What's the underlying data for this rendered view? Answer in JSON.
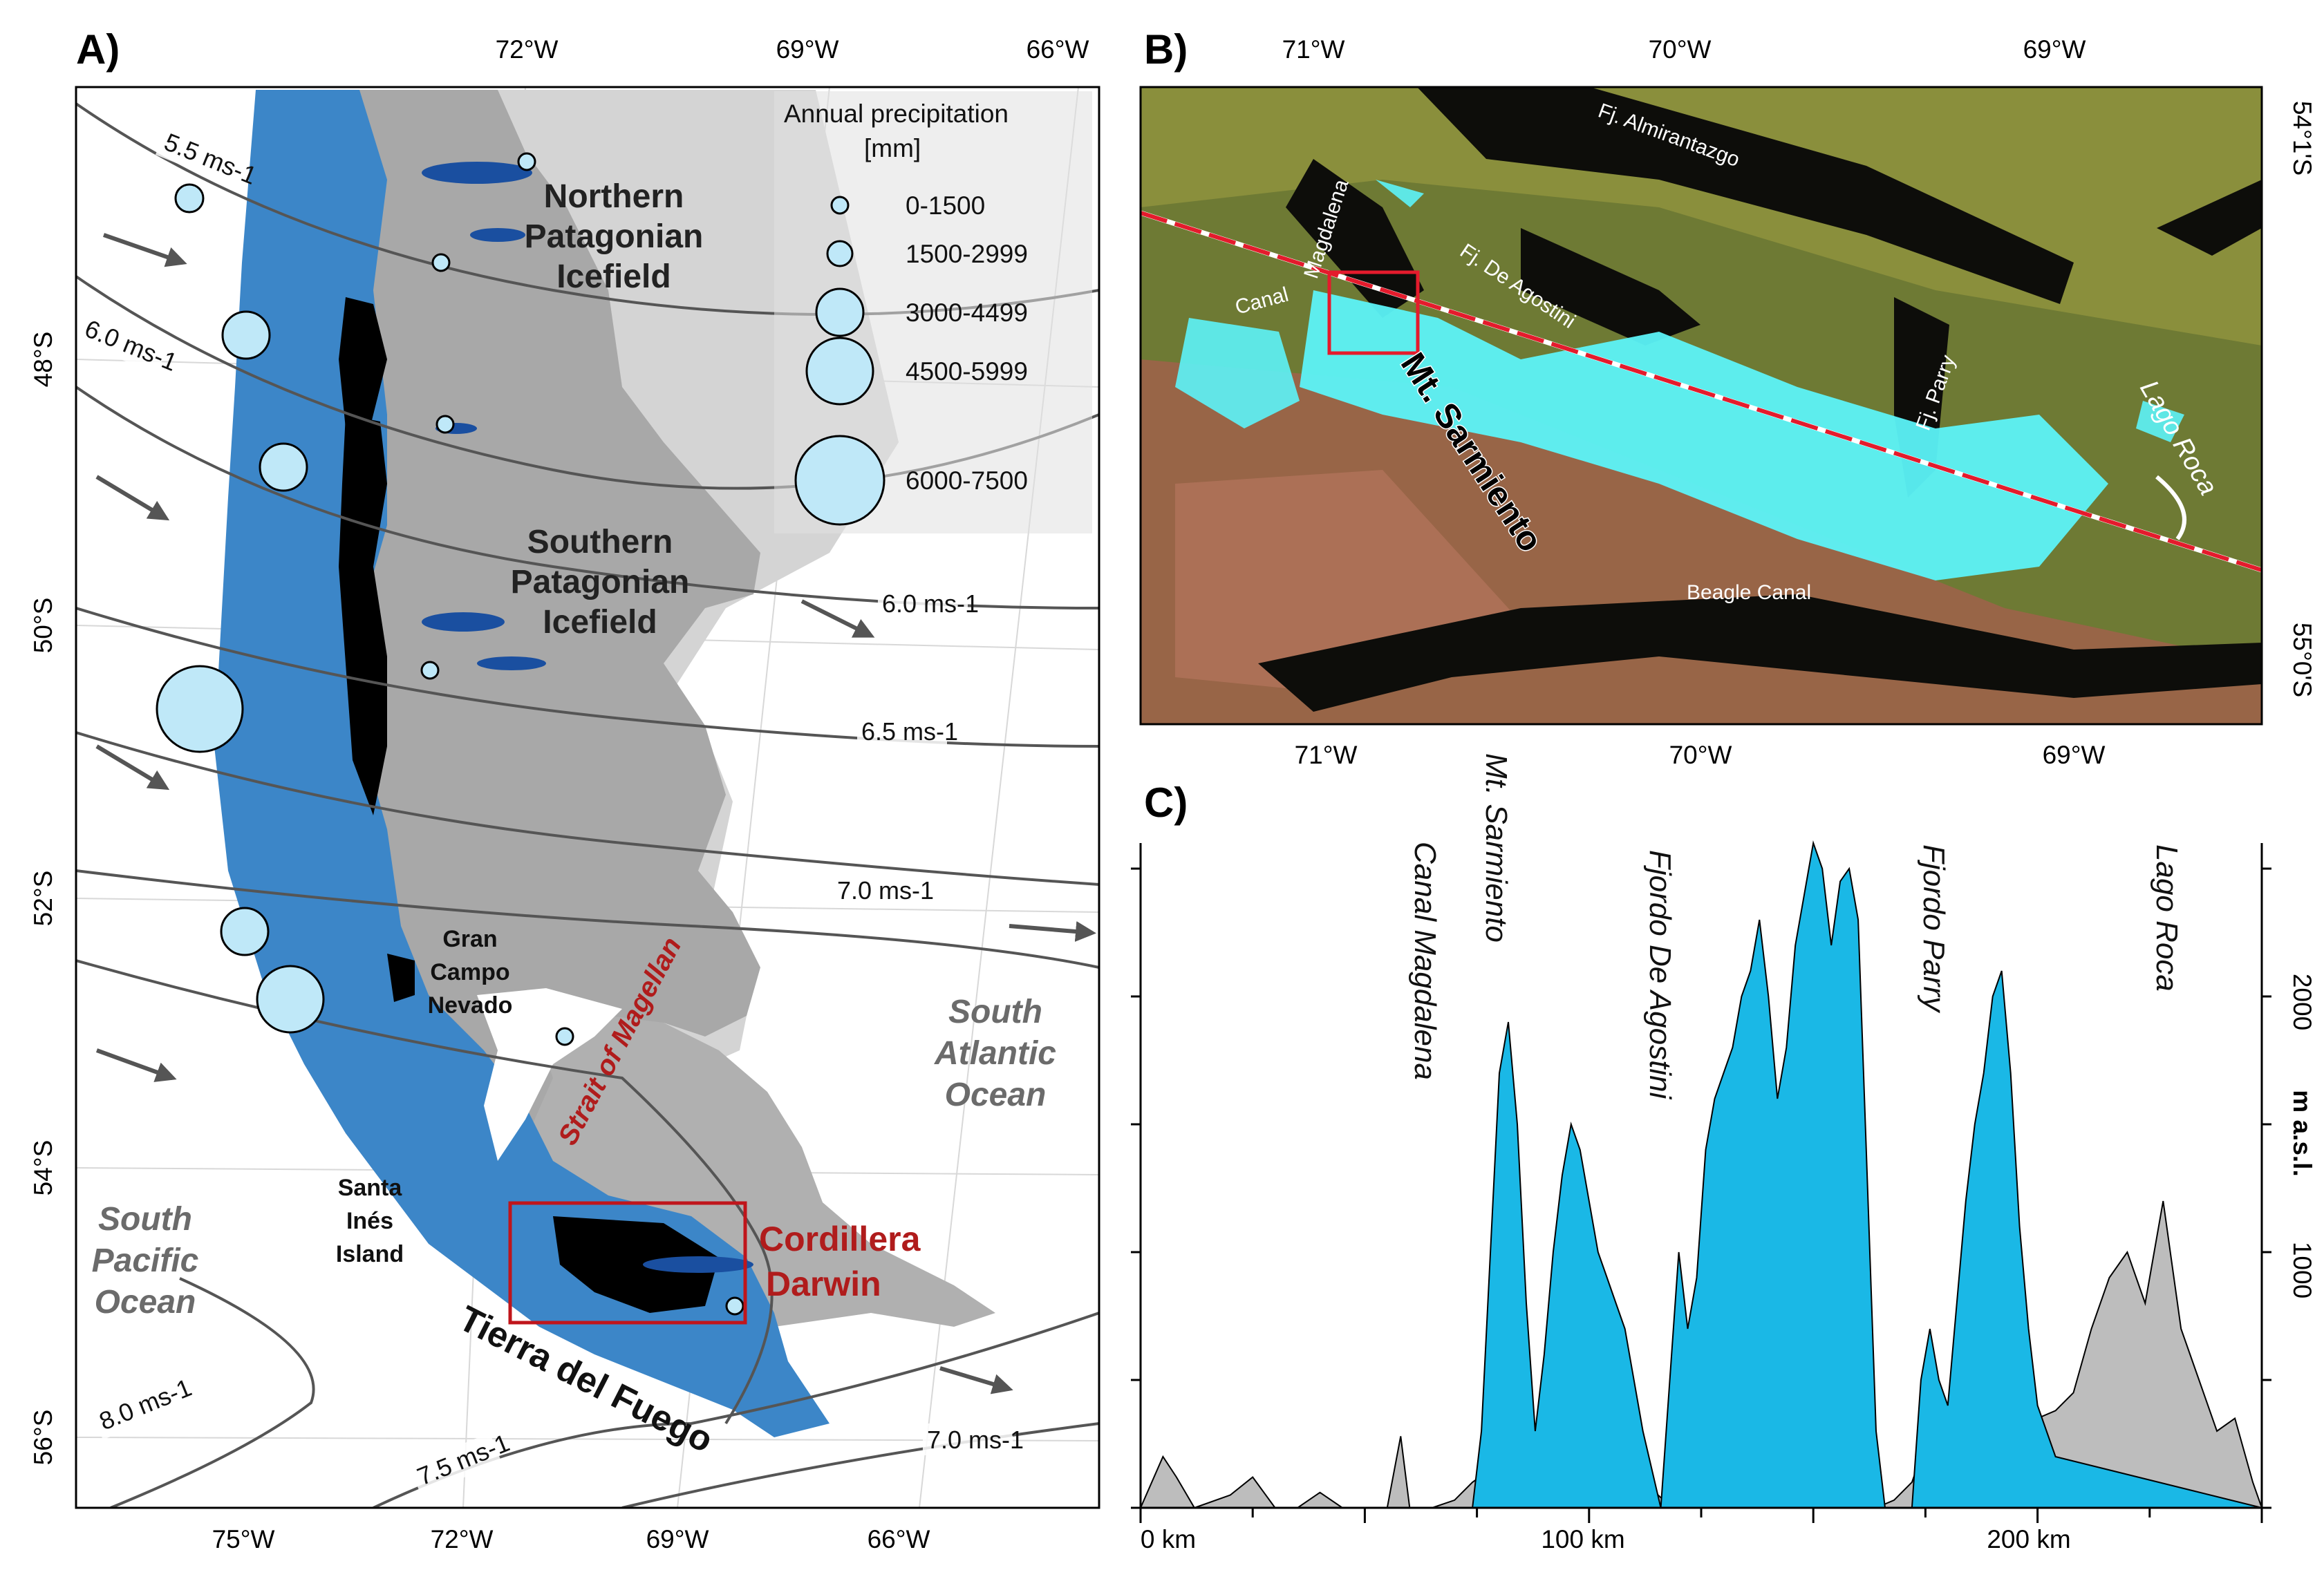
{
  "panels": {
    "a": "A)",
    "b": "B)",
    "c": "C)"
  },
  "panel_a": {
    "top_ticks": [
      "72°W",
      "69°W",
      "66°W"
    ],
    "bottom_ticks": [
      "75°W",
      "72°W",
      "69°W",
      "66°W"
    ],
    "lat_ticks": [
      "48°S",
      "50°S",
      "52°S",
      "54°S",
      "56°S"
    ],
    "legend": {
      "title_line1": "Annual precipitation",
      "title_line2": "[mm]",
      "items": [
        "0-1500",
        "1500-2999",
        "3000-4499",
        "4500-5999",
        "6000-7500"
      ]
    },
    "labels": {
      "npi_1": "Northern",
      "npi_2": "Patagonian",
      "npi_3": "Icefield",
      "spi_1": "Southern",
      "spi_2": "Patagonian",
      "spi_3": "Icefield",
      "gcn_1": "Gran",
      "gcn_2": "Campo",
      "gcn_3": "Nevado",
      "sii_1": "Santa",
      "sii_2": "Inés",
      "sii_3": "Island",
      "strait": "Strait of Magellan",
      "atl_1": "South",
      "atl_2": "Atlantic",
      "atl_3": "Ocean",
      "pac_1": "South",
      "pac_2": "Pacific",
      "pac_3": "Ocean",
      "cd_1": "Cordillera",
      "cd_2": "Darwin",
      "tdf": "Tierra del Fuego"
    },
    "wind_labels": [
      "5.5 ms-1",
      "6.0 ms-1",
      "6.0 ms-1",
      "6.5 ms-1",
      "7.0 ms-1",
      "8.0 ms-1",
      "7.5 ms-1",
      "7.0 ms-1"
    ],
    "wind_base": "ms",
    "wind_sup": "-1",
    "wind_values": [
      "5.5",
      "6.0",
      "6.0",
      "6.5",
      "7.0",
      "8.0",
      "7.5",
      "7.0"
    ],
    "colors": {
      "west_slope": "#3c86c8",
      "ice": "#000000",
      "terrain": "#9a9a9a",
      "lakes": "#1a4fa0",
      "bubble": "#bfe8f8",
      "box": "#c0151b"
    }
  },
  "panel_b": {
    "top_ticks": [
      "71°W",
      "70°W",
      "69°W"
    ],
    "bottom_ticks": [
      "71°W",
      "70°W",
      "69°W"
    ],
    "right_ticks": [
      "54°1'S",
      "55°0'S"
    ],
    "labels": {
      "almirantazgo": "Fj. Almirantazgo",
      "canal_a": "Canal",
      "magdalena": "Magdalena",
      "deagostini": "Fj. De Agostini",
      "parry": "Fj. Parry",
      "lago": "Lago Roca",
      "beagle": "Beagle Canal",
      "sarmiento": "Mt. Sarmiento"
    }
  },
  "panel_c": {
    "x_ticks": [
      "0 km",
      "100 km",
      "200 km"
    ],
    "y_ticks": [
      "2000",
      "1000"
    ],
    "y_unit": "m a.s.l.",
    "labels": [
      "Canal Magdalena",
      "Mt. Sarmiento",
      "Fjordo De Agostini",
      "Fjordo Parry",
      "Lago Roca"
    ],
    "colors": {
      "ice": "#1ab8e6",
      "rock": "#bdbdbd"
    }
  },
  "chart_data": {
    "type": "area",
    "x_unit": "km",
    "y_unit": "m a.s.l.",
    "xlim": [
      0,
      250
    ],
    "ylim": [
      0,
      2600
    ],
    "series": [
      {
        "name": "",
        "x": [
          0,
          5,
          8,
          12,
          20,
          25,
          30,
          35,
          40,
          45,
          50,
          55,
          58,
          60,
          65,
          70,
          74,
          78,
          80,
          83,
          86,
          88,
          90,
          94,
          97,
          100,
          103,
          106,
          110,
          113,
          116,
          120,
          124,
          128,
          132,
          136,
          140,
          144,
          148,
          152,
          155,
          158,
          161,
          164,
          168,
          172,
          176,
          180,
          184,
          188,
          192,
          196,
          200,
          204,
          208,
          212,
          216,
          220,
          224,
          228,
          232,
          236,
          240,
          244,
          248,
          250
        ],
        "y": [
          0,
          200,
          120,
          0,
          50,
          120,
          0,
          0,
          60,
          0,
          0,
          0,
          280,
          0,
          0,
          30,
          100,
          150,
          180,
          250,
          200,
          120,
          220,
          280,
          300,
          250,
          180,
          120,
          60,
          90,
          40,
          20,
          0,
          0,
          0,
          0,
          0,
          0,
          0,
          0,
          0,
          0,
          0,
          0,
          30,
          100,
          300,
          280,
          250,
          280,
          300,
          330,
          350,
          380,
          450,
          700,
          900,
          1000,
          800,
          1200,
          700,
          500,
          300,
          350,
          100,
          0
        ]
      },
      {
        "name": "",
        "x": [
          0,
          74,
          76,
          78,
          80,
          82,
          84,
          86,
          88,
          90,
          92,
          94,
          96,
          98,
          100,
          102,
          104,
          106,
          108,
          110,
          112,
          116,
          118,
          120,
          122,
          124,
          126,
          128,
          130,
          132,
          134,
          136,
          138,
          140,
          142,
          144,
          146,
          148,
          150,
          152,
          154,
          156,
          158,
          160,
          162,
          164,
          166,
          168,
          172,
          174,
          176,
          178,
          180,
          182,
          184,
          186,
          188,
          190,
          192,
          194,
          196,
          198,
          200,
          204,
          250
        ],
        "y": [
          0,
          0,
          300,
          1000,
          1700,
          1900,
          1500,
          800,
          300,
          600,
          1000,
          1300,
          1500,
          1400,
          1200,
          1000,
          900,
          800,
          700,
          500,
          300,
          0,
          500,
          1000,
          700,
          900,
          1400,
          1600,
          1700,
          1800,
          2000,
          2100,
          2300,
          2000,
          1600,
          1800,
          2200,
          2400,
          2600,
          2500,
          2200,
          2450,
          2500,
          2300,
          1300,
          300,
          0,
          0,
          0,
          500,
          700,
          500,
          400,
          800,
          1200,
          1500,
          1700,
          2000,
          2100,
          1700,
          1100,
          700,
          400,
          200,
          0
        ]
      }
    ]
  }
}
